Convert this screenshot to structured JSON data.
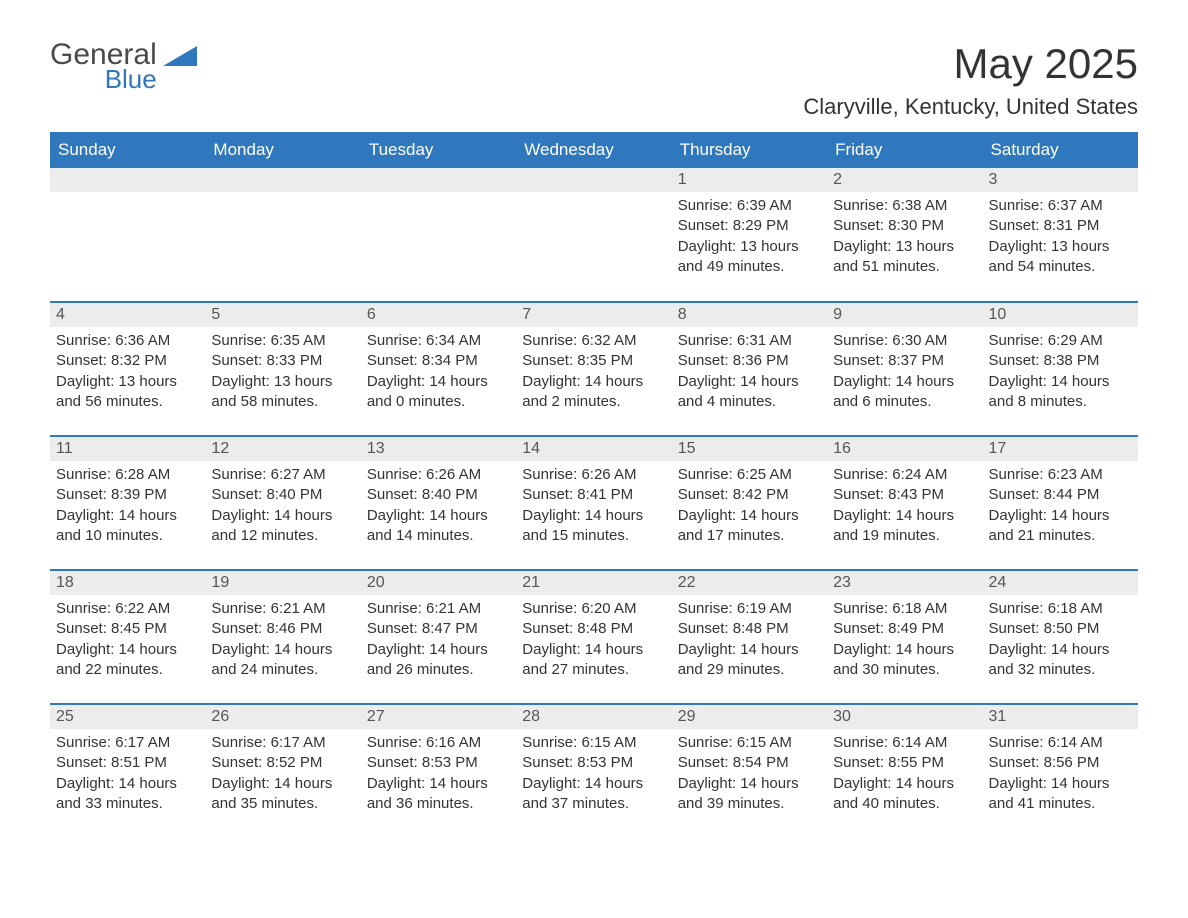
{
  "logo": {
    "general": "General",
    "blue": "Blue",
    "shape_color": "#2f78bd"
  },
  "title": "May 2025",
  "location": "Claryville, Kentucky, United States",
  "colors": {
    "header_bg": "#2f78bd",
    "header_text": "#ffffff",
    "daynum_bg": "#ececec",
    "text": "#333333",
    "row_border": "#2f78bd"
  },
  "day_headers": [
    "Sunday",
    "Monday",
    "Tuesday",
    "Wednesday",
    "Thursday",
    "Friday",
    "Saturday"
  ],
  "labels": {
    "sunrise": "Sunrise:",
    "sunset": "Sunset:",
    "daylight": "Daylight:"
  },
  "weeks": [
    [
      null,
      null,
      null,
      null,
      {
        "n": "1",
        "sunrise": "6:39 AM",
        "sunset": "8:29 PM",
        "daylight": "13 hours and 49 minutes."
      },
      {
        "n": "2",
        "sunrise": "6:38 AM",
        "sunset": "8:30 PM",
        "daylight": "13 hours and 51 minutes."
      },
      {
        "n": "3",
        "sunrise": "6:37 AM",
        "sunset": "8:31 PM",
        "daylight": "13 hours and 54 minutes."
      }
    ],
    [
      {
        "n": "4",
        "sunrise": "6:36 AM",
        "sunset": "8:32 PM",
        "daylight": "13 hours and 56 minutes."
      },
      {
        "n": "5",
        "sunrise": "6:35 AM",
        "sunset": "8:33 PM",
        "daylight": "13 hours and 58 minutes."
      },
      {
        "n": "6",
        "sunrise": "6:34 AM",
        "sunset": "8:34 PM",
        "daylight": "14 hours and 0 minutes."
      },
      {
        "n": "7",
        "sunrise": "6:32 AM",
        "sunset": "8:35 PM",
        "daylight": "14 hours and 2 minutes."
      },
      {
        "n": "8",
        "sunrise": "6:31 AM",
        "sunset": "8:36 PM",
        "daylight": "14 hours and 4 minutes."
      },
      {
        "n": "9",
        "sunrise": "6:30 AM",
        "sunset": "8:37 PM",
        "daylight": "14 hours and 6 minutes."
      },
      {
        "n": "10",
        "sunrise": "6:29 AM",
        "sunset": "8:38 PM",
        "daylight": "14 hours and 8 minutes."
      }
    ],
    [
      {
        "n": "11",
        "sunrise": "6:28 AM",
        "sunset": "8:39 PM",
        "daylight": "14 hours and 10 minutes."
      },
      {
        "n": "12",
        "sunrise": "6:27 AM",
        "sunset": "8:40 PM",
        "daylight": "14 hours and 12 minutes."
      },
      {
        "n": "13",
        "sunrise": "6:26 AM",
        "sunset": "8:40 PM",
        "daylight": "14 hours and 14 minutes."
      },
      {
        "n": "14",
        "sunrise": "6:26 AM",
        "sunset": "8:41 PM",
        "daylight": "14 hours and 15 minutes."
      },
      {
        "n": "15",
        "sunrise": "6:25 AM",
        "sunset": "8:42 PM",
        "daylight": "14 hours and 17 minutes."
      },
      {
        "n": "16",
        "sunrise": "6:24 AM",
        "sunset": "8:43 PM",
        "daylight": "14 hours and 19 minutes."
      },
      {
        "n": "17",
        "sunrise": "6:23 AM",
        "sunset": "8:44 PM",
        "daylight": "14 hours and 21 minutes."
      }
    ],
    [
      {
        "n": "18",
        "sunrise": "6:22 AM",
        "sunset": "8:45 PM",
        "daylight": "14 hours and 22 minutes."
      },
      {
        "n": "19",
        "sunrise": "6:21 AM",
        "sunset": "8:46 PM",
        "daylight": "14 hours and 24 minutes."
      },
      {
        "n": "20",
        "sunrise": "6:21 AM",
        "sunset": "8:47 PM",
        "daylight": "14 hours and 26 minutes."
      },
      {
        "n": "21",
        "sunrise": "6:20 AM",
        "sunset": "8:48 PM",
        "daylight": "14 hours and 27 minutes."
      },
      {
        "n": "22",
        "sunrise": "6:19 AM",
        "sunset": "8:48 PM",
        "daylight": "14 hours and 29 minutes."
      },
      {
        "n": "23",
        "sunrise": "6:18 AM",
        "sunset": "8:49 PM",
        "daylight": "14 hours and 30 minutes."
      },
      {
        "n": "24",
        "sunrise": "6:18 AM",
        "sunset": "8:50 PM",
        "daylight": "14 hours and 32 minutes."
      }
    ],
    [
      {
        "n": "25",
        "sunrise": "6:17 AM",
        "sunset": "8:51 PM",
        "daylight": "14 hours and 33 minutes."
      },
      {
        "n": "26",
        "sunrise": "6:17 AM",
        "sunset": "8:52 PM",
        "daylight": "14 hours and 35 minutes."
      },
      {
        "n": "27",
        "sunrise": "6:16 AM",
        "sunset": "8:53 PM",
        "daylight": "14 hours and 36 minutes."
      },
      {
        "n": "28",
        "sunrise": "6:15 AM",
        "sunset": "8:53 PM",
        "daylight": "14 hours and 37 minutes."
      },
      {
        "n": "29",
        "sunrise": "6:15 AM",
        "sunset": "8:54 PM",
        "daylight": "14 hours and 39 minutes."
      },
      {
        "n": "30",
        "sunrise": "6:14 AM",
        "sunset": "8:55 PM",
        "daylight": "14 hours and 40 minutes."
      },
      {
        "n": "31",
        "sunrise": "6:14 AM",
        "sunset": "8:56 PM",
        "daylight": "14 hours and 41 minutes."
      }
    ]
  ]
}
